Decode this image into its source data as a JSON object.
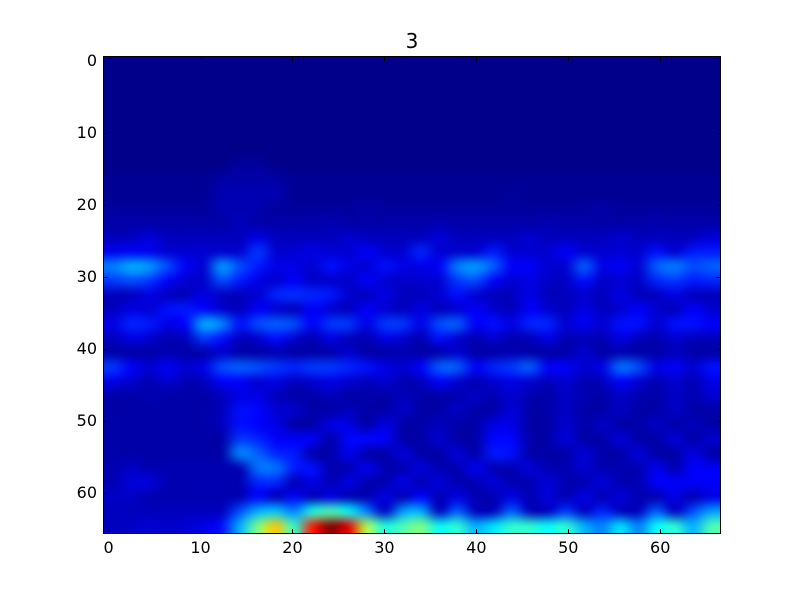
{
  "title": "3",
  "figure": {
    "background": "#ffffff",
    "frame_color": "#000000"
  },
  "axes": {
    "x_ticks": [
      0,
      10,
      20,
      30,
      40,
      50,
      60
    ],
    "y_ticks": [
      0,
      10,
      20,
      30,
      40,
      50,
      60
    ],
    "x_cells": 67,
    "y_cells": 66,
    "y_inverted": true
  },
  "chart_data": {
    "type": "heatmap",
    "title": "3",
    "colormap": "jet",
    "xlabel": "",
    "ylabel": "",
    "x_range": [
      0,
      66
    ],
    "y_range": [
      0,
      65
    ],
    "y_axis_inverted": true,
    "vmin": 0,
    "vmax": 1,
    "grid_cols": 34,
    "grid_rows": 33,
    "cell_size_data_units": 2,
    "max_location": {
      "x": 25,
      "y": 64
    },
    "values": [
      [
        0.01,
        0.01,
        0.01,
        0.01,
        0.01,
        0.01,
        0.01,
        0.01,
        0.01,
        0.01,
        0.01,
        0.01,
        0.01,
        0.01,
        0.01,
        0.01,
        0.01,
        0.01,
        0.01,
        0.01,
        0.01,
        0.01,
        0.01,
        0.01,
        0.01,
        0.01,
        0.01,
        0.01,
        0.01,
        0.01,
        0.01,
        0.01,
        0.01,
        0.01
      ],
      [
        0.01,
        0.01,
        0.01,
        0.01,
        0.01,
        0.01,
        0.01,
        0.01,
        0.01,
        0.01,
        0.01,
        0.01,
        0.01,
        0.01,
        0.01,
        0.01,
        0.01,
        0.01,
        0.01,
        0.01,
        0.01,
        0.01,
        0.01,
        0.01,
        0.01,
        0.01,
        0.01,
        0.01,
        0.01,
        0.01,
        0.01,
        0.01,
        0.01,
        0.01
      ],
      [
        0.01,
        0.01,
        0.01,
        0.01,
        0.01,
        0.01,
        0.01,
        0.01,
        0.01,
        0.01,
        0.01,
        0.01,
        0.01,
        0.01,
        0.01,
        0.01,
        0.01,
        0.01,
        0.01,
        0.01,
        0.01,
        0.01,
        0.01,
        0.01,
        0.01,
        0.01,
        0.01,
        0.01,
        0.01,
        0.01,
        0.01,
        0.01,
        0.01,
        0.01
      ],
      [
        0.01,
        0.01,
        0.01,
        0.01,
        0.01,
        0.01,
        0.01,
        0.01,
        0.01,
        0.01,
        0.01,
        0.01,
        0.01,
        0.01,
        0.01,
        0.01,
        0.01,
        0.01,
        0.01,
        0.01,
        0.01,
        0.01,
        0.01,
        0.01,
        0.01,
        0.01,
        0.01,
        0.01,
        0.01,
        0.01,
        0.01,
        0.01,
        0.01,
        0.01
      ],
      [
        0.01,
        0.01,
        0.01,
        0.01,
        0.01,
        0.01,
        0.01,
        0.01,
        0.01,
        0.01,
        0.01,
        0.01,
        0.01,
        0.01,
        0.01,
        0.01,
        0.01,
        0.01,
        0.01,
        0.01,
        0.01,
        0.01,
        0.01,
        0.01,
        0.01,
        0.01,
        0.01,
        0.01,
        0.01,
        0.01,
        0.01,
        0.01,
        0.01,
        0.01
      ],
      [
        0.01,
        0.01,
        0.01,
        0.01,
        0.01,
        0.01,
        0.01,
        0.01,
        0.01,
        0.01,
        0.01,
        0.01,
        0.01,
        0.01,
        0.01,
        0.01,
        0.01,
        0.01,
        0.01,
        0.01,
        0.01,
        0.01,
        0.01,
        0.01,
        0.01,
        0.01,
        0.01,
        0.01,
        0.01,
        0.01,
        0.01,
        0.01,
        0.01,
        0.01
      ],
      [
        0.01,
        0.01,
        0.01,
        0.01,
        0.01,
        0.01,
        0.01,
        0.01,
        0.01,
        0.01,
        0.01,
        0.01,
        0.01,
        0.01,
        0.01,
        0.01,
        0.01,
        0.01,
        0.01,
        0.01,
        0.01,
        0.01,
        0.01,
        0.01,
        0.01,
        0.01,
        0.01,
        0.01,
        0.01,
        0.01,
        0.01,
        0.01,
        0.01,
        0.01
      ],
      [
        0.01,
        0.01,
        0.01,
        0.01,
        0.01,
        0.01,
        0.01,
        0.03,
        0.03,
        0.01,
        0.01,
        0.01,
        0.01,
        0.01,
        0.01,
        0.01,
        0.01,
        0.01,
        0.01,
        0.01,
        0.01,
        0.01,
        0.01,
        0.01,
        0.01,
        0.01,
        0.01,
        0.01,
        0.01,
        0.01,
        0.01,
        0.01,
        0.01,
        0.01
      ],
      [
        0.02,
        0.02,
        0.02,
        0.02,
        0.02,
        0.02,
        0.04,
        0.04,
        0.04,
        0.04,
        0.02,
        0.02,
        0.02,
        0.02,
        0.02,
        0.02,
        0.02,
        0.02,
        0.02,
        0.02,
        0.02,
        0.02,
        0.02,
        0.02,
        0.02,
        0.02,
        0.02,
        0.02,
        0.02,
        0.02,
        0.02,
        0.02,
        0.02,
        0.02
      ],
      [
        0.02,
        0.02,
        0.02,
        0.02,
        0.02,
        0.02,
        0.05,
        0.05,
        0.05,
        0.05,
        0.02,
        0.02,
        0.02,
        0.02,
        0.02,
        0.02,
        0.02,
        0.02,
        0.02,
        0.02,
        0.02,
        0.02,
        0.03,
        0.02,
        0.02,
        0.02,
        0.02,
        0.02,
        0.02,
        0.02,
        0.02,
        0.02,
        0.02,
        0.02
      ],
      [
        0.03,
        0.03,
        0.03,
        0.03,
        0.03,
        0.03,
        0.05,
        0.05,
        0.05,
        0.03,
        0.03,
        0.03,
        0.03,
        0.03,
        0.04,
        0.03,
        0.03,
        0.03,
        0.03,
        0.03,
        0.03,
        0.03,
        0.03,
        0.03,
        0.03,
        0.03,
        0.03,
        0.04,
        0.03,
        0.03,
        0.03,
        0.03,
        0.03,
        0.03
      ],
      [
        0.04,
        0.04,
        0.04,
        0.04,
        0.04,
        0.04,
        0.04,
        0.06,
        0.04,
        0.04,
        0.04,
        0.04,
        0.05,
        0.04,
        0.04,
        0.04,
        0.04,
        0.04,
        0.05,
        0.04,
        0.04,
        0.04,
        0.04,
        0.04,
        0.05,
        0.04,
        0.04,
        0.04,
        0.04,
        0.04,
        0.05,
        0.04,
        0.04,
        0.04
      ],
      [
        0.06,
        0.06,
        0.09,
        0.06,
        0.06,
        0.06,
        0.06,
        0.06,
        0.1,
        0.06,
        0.06,
        0.06,
        0.06,
        0.08,
        0.06,
        0.06,
        0.06,
        0.06,
        0.09,
        0.06,
        0.06,
        0.06,
        0.06,
        0.08,
        0.06,
        0.06,
        0.06,
        0.06,
        0.08,
        0.06,
        0.06,
        0.06,
        0.06,
        0.09
      ],
      [
        0.11,
        0.12,
        0.11,
        0.08,
        0.08,
        0.08,
        0.08,
        0.08,
        0.18,
        0.08,
        0.08,
        0.1,
        0.08,
        0.08,
        0.12,
        0.08,
        0.08,
        0.16,
        0.08,
        0.08,
        0.08,
        0.15,
        0.08,
        0.08,
        0.08,
        0.12,
        0.08,
        0.08,
        0.08,
        0.08,
        0.14,
        0.08,
        0.15,
        0.15
      ],
      [
        0.25,
        0.3,
        0.28,
        0.2,
        0.12,
        0.08,
        0.28,
        0.2,
        0.15,
        0.1,
        0.1,
        0.08,
        0.14,
        0.1,
        0.08,
        0.14,
        0.1,
        0.1,
        0.12,
        0.25,
        0.28,
        0.22,
        0.12,
        0.12,
        0.08,
        0.08,
        0.22,
        0.1,
        0.12,
        0.08,
        0.22,
        0.25,
        0.2,
        0.22
      ],
      [
        0.18,
        0.2,
        0.18,
        0.12,
        0.08,
        0.07,
        0.2,
        0.15,
        0.1,
        0.08,
        0.12,
        0.07,
        0.08,
        0.07,
        0.12,
        0.08,
        0.07,
        0.08,
        0.08,
        0.18,
        0.2,
        0.12,
        0.08,
        0.1,
        0.07,
        0.07,
        0.14,
        0.07,
        0.08,
        0.07,
        0.16,
        0.18,
        0.15,
        0.16
      ],
      [
        0.06,
        0.06,
        0.1,
        0.06,
        0.06,
        0.1,
        0.06,
        0.06,
        0.08,
        0.16,
        0.17,
        0.16,
        0.15,
        0.08,
        0.06,
        0.1,
        0.06,
        0.06,
        0.08,
        0.14,
        0.08,
        0.06,
        0.06,
        0.1,
        0.06,
        0.06,
        0.08,
        0.06,
        0.1,
        0.06,
        0.06,
        0.1,
        0.06,
        0.06
      ],
      [
        0.06,
        0.1,
        0.08,
        0.14,
        0.15,
        0.13,
        0.08,
        0.06,
        0.12,
        0.08,
        0.06,
        0.12,
        0.08,
        0.06,
        0.12,
        0.08,
        0.06,
        0.1,
        0.06,
        0.08,
        0.12,
        0.08,
        0.06,
        0.12,
        0.08,
        0.06,
        0.1,
        0.06,
        0.08,
        0.12,
        0.08,
        0.06,
        0.12,
        0.08
      ],
      [
        0.1,
        0.16,
        0.15,
        0.1,
        0.12,
        0.3,
        0.26,
        0.14,
        0.2,
        0.22,
        0.2,
        0.12,
        0.18,
        0.18,
        0.1,
        0.18,
        0.18,
        0.1,
        0.2,
        0.22,
        0.12,
        0.14,
        0.1,
        0.16,
        0.16,
        0.08,
        0.12,
        0.08,
        0.14,
        0.14,
        0.08,
        0.14,
        0.14,
        0.12
      ],
      [
        0.06,
        0.1,
        0.08,
        0.05,
        0.06,
        0.18,
        0.14,
        0.06,
        0.08,
        0.14,
        0.08,
        0.05,
        0.1,
        0.06,
        0.05,
        0.1,
        0.08,
        0.05,
        0.14,
        0.08,
        0.05,
        0.08,
        0.05,
        0.06,
        0.1,
        0.05,
        0.06,
        0.05,
        0.1,
        0.06,
        0.05,
        0.08,
        0.06,
        0.06
      ],
      [
        0.04,
        0.04,
        0.04,
        0.05,
        0.04,
        0.04,
        0.08,
        0.04,
        0.04,
        0.05,
        0.04,
        0.04,
        0.04,
        0.08,
        0.04,
        0.04,
        0.05,
        0.04,
        0.04,
        0.08,
        0.04,
        0.04,
        0.05,
        0.04,
        0.04,
        0.04,
        0.08,
        0.04,
        0.05,
        0.04,
        0.04,
        0.06,
        0.04,
        0.04
      ],
      [
        0.18,
        0.12,
        0.08,
        0.12,
        0.08,
        0.1,
        0.2,
        0.22,
        0.2,
        0.18,
        0.16,
        0.18,
        0.18,
        0.16,
        0.14,
        0.1,
        0.08,
        0.12,
        0.22,
        0.22,
        0.12,
        0.16,
        0.18,
        0.22,
        0.12,
        0.12,
        0.08,
        0.1,
        0.24,
        0.2,
        0.1,
        0.12,
        0.08,
        0.14
      ],
      [
        0.1,
        0.08,
        0.05,
        0.08,
        0.05,
        0.06,
        0.12,
        0.12,
        0.08,
        0.1,
        0.06,
        0.08,
        0.1,
        0.08,
        0.06,
        0.08,
        0.05,
        0.06,
        0.12,
        0.08,
        0.05,
        0.08,
        0.1,
        0.08,
        0.06,
        0.08,
        0.05,
        0.06,
        0.12,
        0.08,
        0.05,
        0.08,
        0.05,
        0.1
      ],
      [
        0.04,
        0.04,
        0.05,
        0.04,
        0.04,
        0.04,
        0.06,
        0.1,
        0.1,
        0.06,
        0.04,
        0.04,
        0.06,
        0.04,
        0.04,
        0.04,
        0.06,
        0.04,
        0.04,
        0.05,
        0.07,
        0.05,
        0.08,
        0.05,
        0.04,
        0.07,
        0.05,
        0.04,
        0.07,
        0.05,
        0.04,
        0.07,
        0.05,
        0.08
      ],
      [
        0.04,
        0.04,
        0.04,
        0.04,
        0.04,
        0.04,
        0.06,
        0.14,
        0.13,
        0.08,
        0.08,
        0.04,
        0.04,
        0.06,
        0.04,
        0.04,
        0.07,
        0.04,
        0.04,
        0.07,
        0.04,
        0.04,
        0.09,
        0.04,
        0.04,
        0.07,
        0.04,
        0.04,
        0.07,
        0.04,
        0.04,
        0.07,
        0.04,
        0.04
      ],
      [
        0.04,
        0.04,
        0.04,
        0.04,
        0.04,
        0.04,
        0.06,
        0.14,
        0.12,
        0.1,
        0.04,
        0.04,
        0.1,
        0.1,
        0.04,
        0.1,
        0.04,
        0.04,
        0.06,
        0.04,
        0.04,
        0.1,
        0.1,
        0.04,
        0.04,
        0.08,
        0.04,
        0.07,
        0.04,
        0.04,
        0.07,
        0.04,
        0.06,
        0.04
      ],
      [
        0.04,
        0.04,
        0.04,
        0.04,
        0.04,
        0.04,
        0.04,
        0.18,
        0.16,
        0.12,
        0.12,
        0.12,
        0.04,
        0.13,
        0.13,
        0.12,
        0.04,
        0.04,
        0.08,
        0.04,
        0.04,
        0.13,
        0.13,
        0.04,
        0.04,
        0.09,
        0.04,
        0.04,
        0.09,
        0.04,
        0.04,
        0.09,
        0.04,
        0.08
      ],
      [
        0.04,
        0.04,
        0.04,
        0.04,
        0.04,
        0.04,
        0.04,
        0.26,
        0.22,
        0.16,
        0.15,
        0.04,
        0.04,
        0.11,
        0.04,
        0.04,
        0.09,
        0.04,
        0.04,
        0.09,
        0.04,
        0.15,
        0.14,
        0.04,
        0.04,
        0.04,
        0.09,
        0.04,
        0.04,
        0.09,
        0.04,
        0.04,
        0.1,
        0.04
      ],
      [
        0.05,
        0.07,
        0.05,
        0.05,
        0.05,
        0.05,
        0.05,
        0.05,
        0.24,
        0.24,
        0.15,
        0.14,
        0.05,
        0.05,
        0.11,
        0.05,
        0.05,
        0.09,
        0.05,
        0.05,
        0.11,
        0.05,
        0.05,
        0.09,
        0.05,
        0.05,
        0.08,
        0.05,
        0.05,
        0.05,
        0.11,
        0.05,
        0.12,
        0.12
      ],
      [
        0.05,
        0.09,
        0.09,
        0.05,
        0.05,
        0.05,
        0.05,
        0.05,
        0.16,
        0.16,
        0.05,
        0.1,
        0.05,
        0.1,
        0.05,
        0.05,
        0.1,
        0.05,
        0.09,
        0.05,
        0.05,
        0.09,
        0.05,
        0.05,
        0.09,
        0.05,
        0.05,
        0.09,
        0.05,
        0.05,
        0.12,
        0.12,
        0.12,
        0.12
      ],
      [
        0.07,
        0.07,
        0.05,
        0.05,
        0.05,
        0.05,
        0.05,
        0.05,
        0.13,
        0.05,
        0.13,
        0.05,
        0.1,
        0.05,
        0.05,
        0.1,
        0.05,
        0.13,
        0.05,
        0.1,
        0.05,
        0.05,
        0.1,
        0.05,
        0.09,
        0.05,
        0.1,
        0.05,
        0.09,
        0.05,
        0.05,
        0.1,
        0.05,
        0.1
      ],
      [
        0.06,
        0.06,
        0.06,
        0.06,
        0.06,
        0.06,
        0.06,
        0.2,
        0.3,
        0.32,
        0.25,
        0.4,
        0.45,
        0.38,
        0.25,
        0.06,
        0.28,
        0.3,
        0.06,
        0.22,
        0.06,
        0.06,
        0.22,
        0.06,
        0.06,
        0.18,
        0.06,
        0.16,
        0.06,
        0.06,
        0.22,
        0.06,
        0.2,
        0.28
      ],
      [
        0.06,
        0.07,
        0.08,
        0.07,
        0.08,
        0.1,
        0.14,
        0.3,
        0.5,
        0.68,
        0.42,
        0.85,
        1.0,
        0.9,
        0.55,
        0.4,
        0.45,
        0.5,
        0.38,
        0.42,
        0.3,
        0.35,
        0.42,
        0.42,
        0.38,
        0.42,
        0.3,
        0.25,
        0.35,
        0.25,
        0.38,
        0.42,
        0.3,
        0.45
      ]
    ]
  }
}
